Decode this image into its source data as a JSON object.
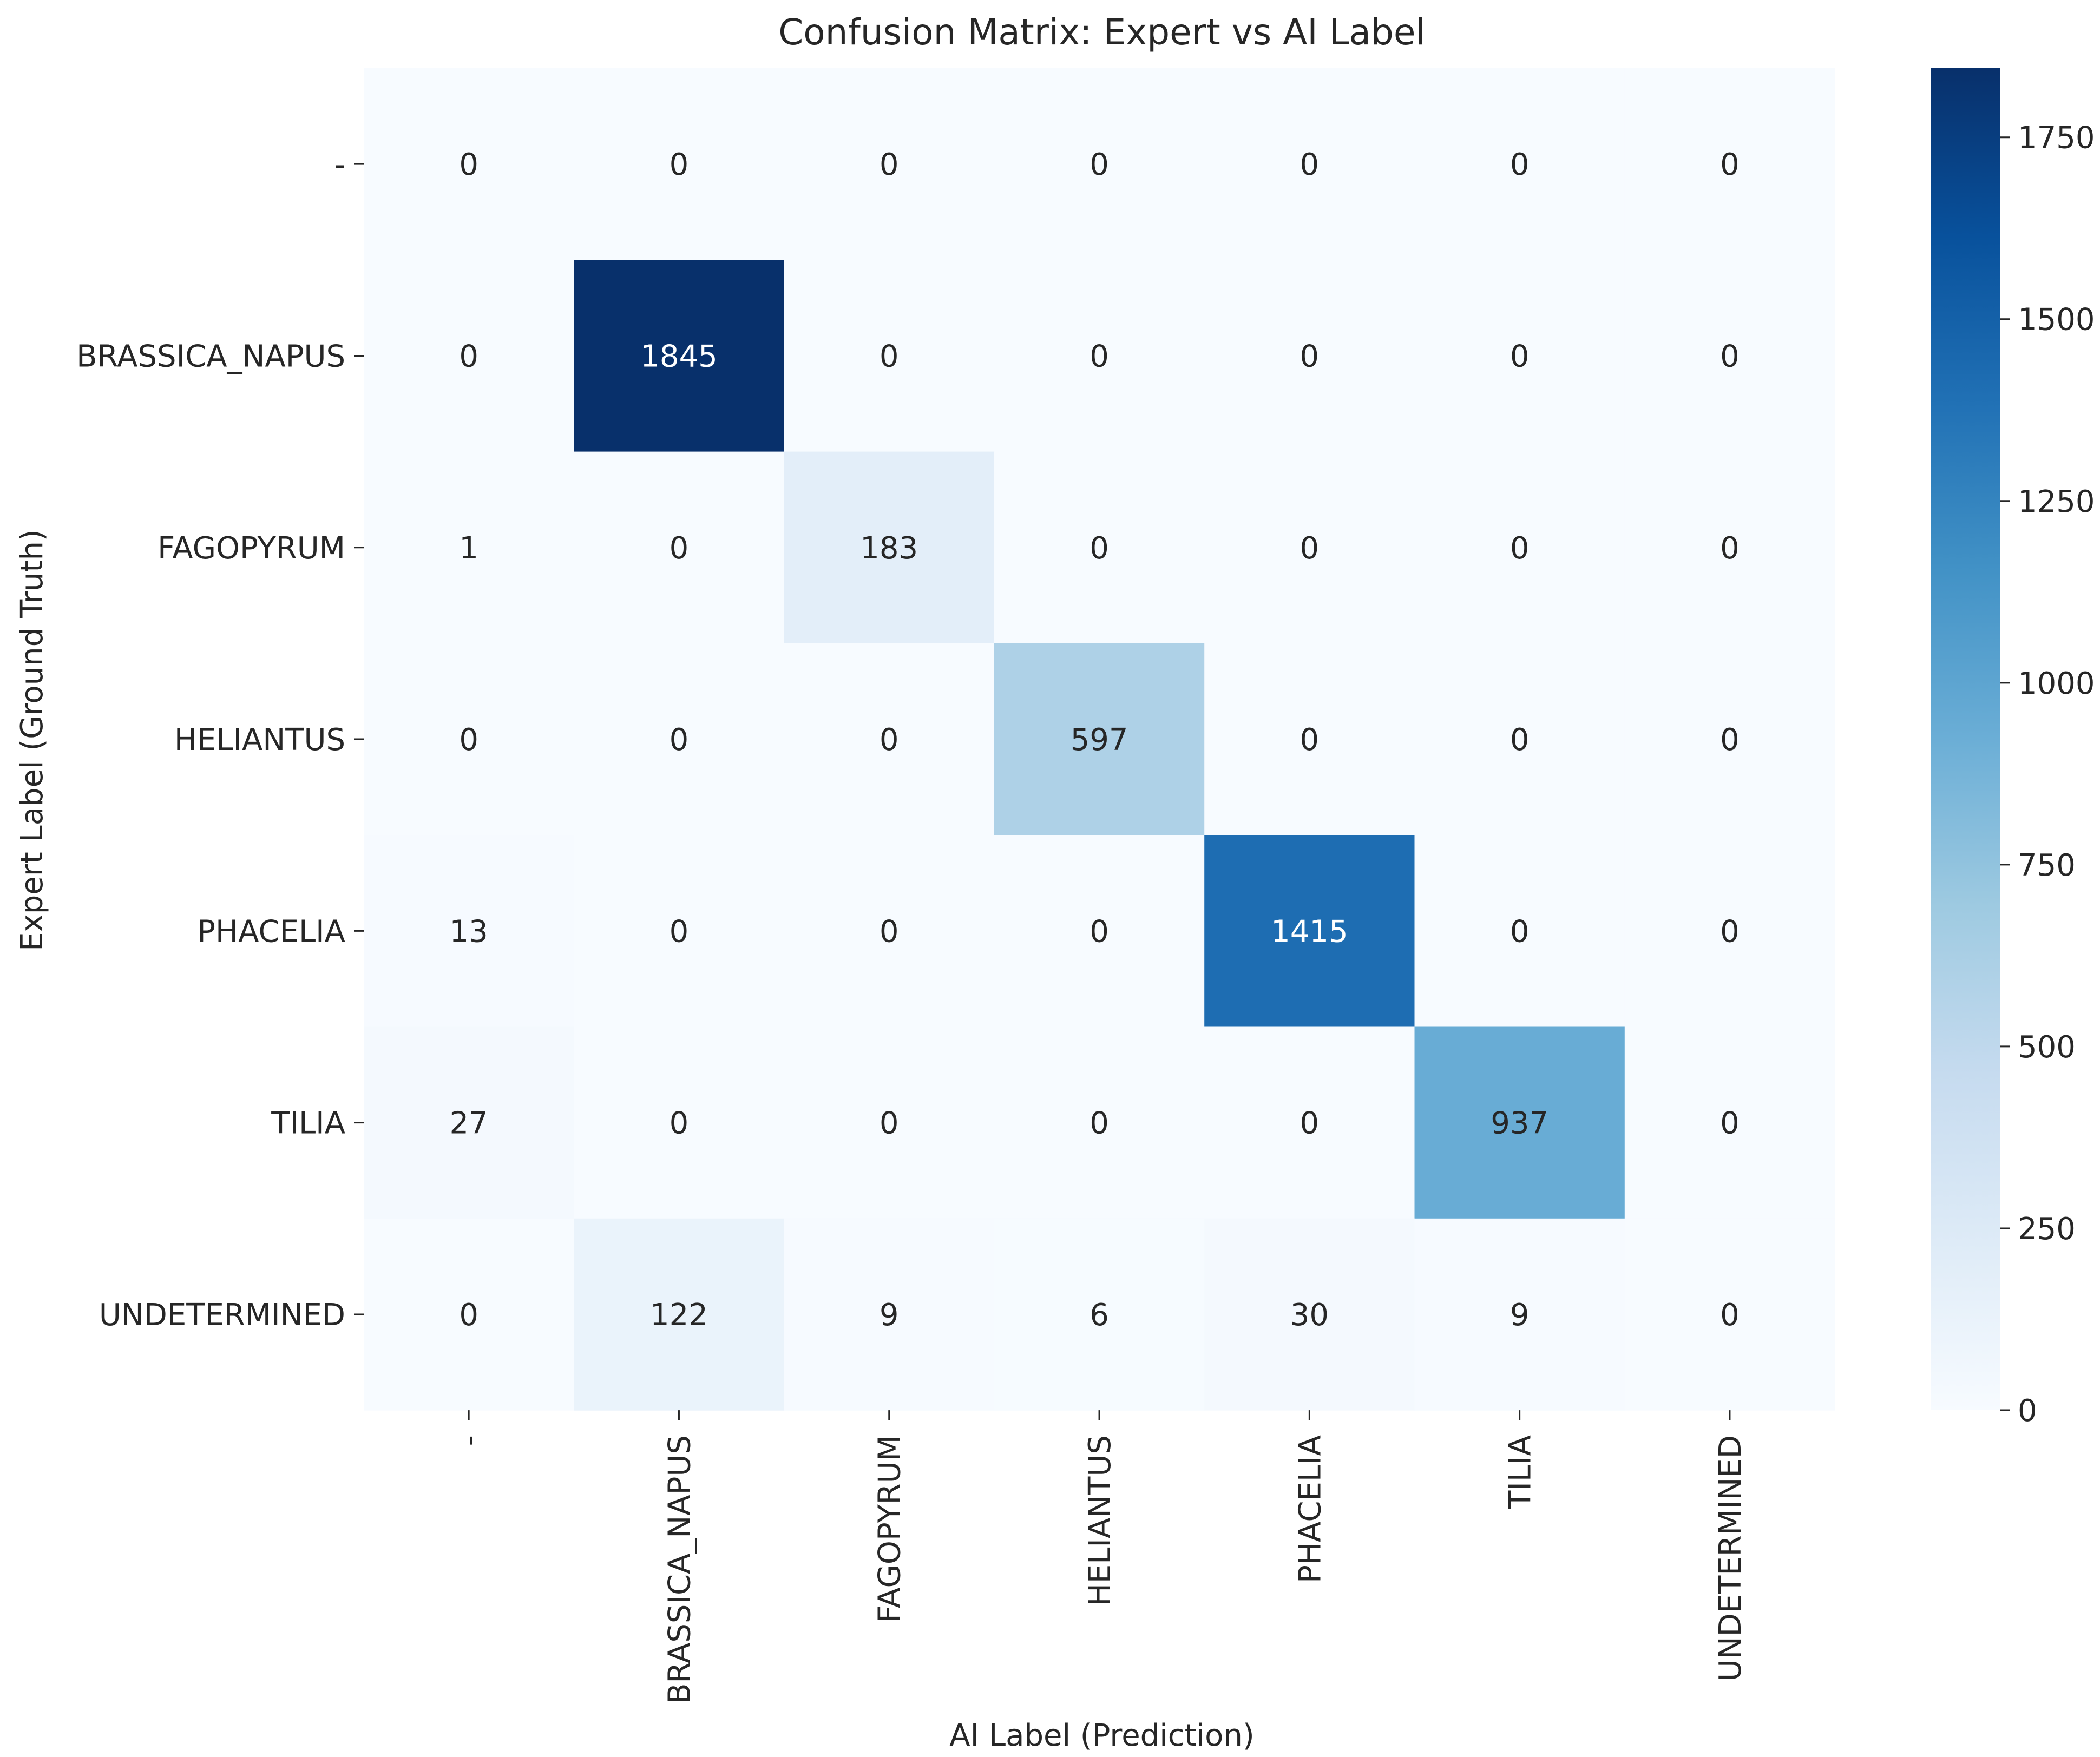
{
  "chart_data": {
    "type": "heatmap",
    "title": "Confusion Matrix: Expert vs AI Label",
    "xlabel": "AI Label (Prediction)",
    "ylabel": "Expert Label (Ground Truth)",
    "x_categories": [
      "-",
      "BRASSICA_NAPUS",
      "FAGOPYRUM",
      "HELIANTUS",
      "PHACELIA",
      "TILIA",
      "UNDETERMINED"
    ],
    "y_categories": [
      "-",
      "BRASSICA_NAPUS",
      "FAGOPYRUM",
      "HELIANTUS",
      "PHACELIA",
      "TILIA",
      "UNDETERMINED"
    ],
    "values": [
      [
        0,
        0,
        0,
        0,
        0,
        0,
        0
      ],
      [
        0,
        1845,
        0,
        0,
        0,
        0,
        0
      ],
      [
        1,
        0,
        183,
        0,
        0,
        0,
        0
      ],
      [
        0,
        0,
        0,
        597,
        0,
        0,
        0
      ],
      [
        13,
        0,
        0,
        0,
        1415,
        0,
        0
      ],
      [
        27,
        0,
        0,
        0,
        0,
        937,
        0
      ],
      [
        0,
        122,
        9,
        6,
        30,
        9,
        0
      ]
    ],
    "colorbar": {
      "range": [
        0,
        1845
      ],
      "ticks": [
        0,
        250,
        500,
        750,
        1000,
        1250,
        1500,
        1750
      ],
      "colormap": "Blues"
    },
    "annotation_colors": {
      "dark_text": "#262626",
      "light_text": "#ffffff"
    }
  }
}
